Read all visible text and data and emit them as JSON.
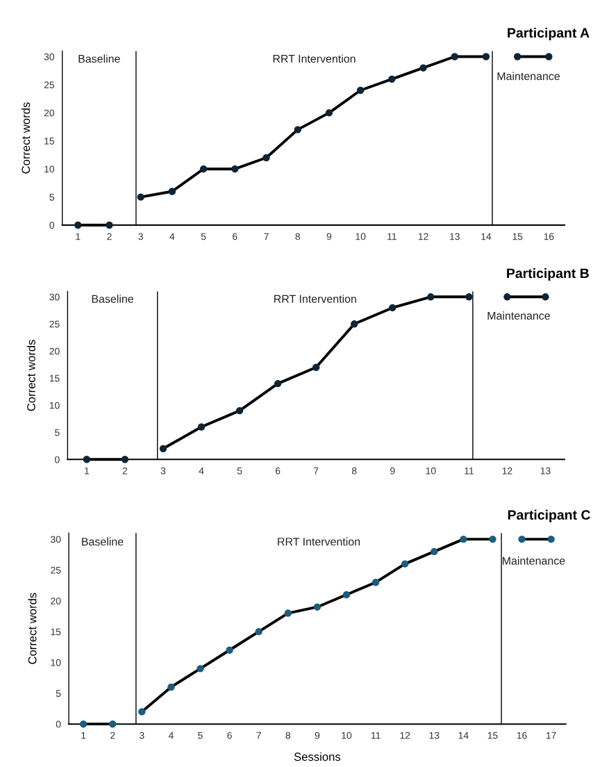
{
  "chart_data": [
    {
      "type": "line",
      "title": "Participant A",
      "ylabel": "Correct words",
      "x": [
        1,
        2,
        3,
        4,
        5,
        6,
        7,
        8,
        9,
        10,
        11,
        12,
        13,
        14,
        15,
        16
      ],
      "xlim": [
        0.5,
        16.5
      ],
      "xticks": [
        1,
        2,
        3,
        4,
        5,
        6,
        7,
        8,
        9,
        10,
        11,
        12,
        13,
        14,
        15,
        16
      ],
      "ylim": [
        0,
        31
      ],
      "yticks": [
        0,
        5,
        10,
        15,
        20,
        25,
        30
      ],
      "marker": "circle",
      "grid": false,
      "legend": false,
      "series": [
        {
          "color": "#0f2535",
          "values": [
            0,
            0,
            null,
            null,
            null,
            null,
            null,
            null,
            null,
            null,
            null,
            null,
            null,
            null,
            null,
            null
          ]
        },
        {
          "color": "#0f2535",
          "values": [
            null,
            null,
            5,
            6,
            10,
            10,
            12,
            17,
            20,
            24,
            26,
            28,
            30,
            30,
            null,
            null
          ]
        },
        {
          "color": "#0f2535",
          "values": [
            null,
            null,
            null,
            null,
            null,
            null,
            null,
            null,
            null,
            null,
            null,
            null,
            null,
            null,
            30,
            30
          ]
        }
      ],
      "ref_lines": [
        {
          "axis": "x",
          "value": 2.85
        },
        {
          "axis": "x",
          "value": 14.2
        }
      ],
      "annotations": [
        "Baseline",
        "RRT Intervention",
        "Maintenance"
      ]
    },
    {
      "type": "line",
      "title": "Participant B",
      "ylabel": "Correct words",
      "x": [
        1,
        2,
        3,
        4,
        5,
        6,
        7,
        8,
        9,
        10,
        11,
        12,
        13
      ],
      "xlim": [
        0.5,
        13.5
      ],
      "xticks": [
        1,
        2,
        3,
        4,
        5,
        6,
        7,
        8,
        9,
        10,
        11,
        12,
        13
      ],
      "ylim": [
        0,
        31
      ],
      "yticks": [
        0,
        5,
        10,
        15,
        20,
        25,
        30
      ],
      "marker": "circle",
      "grid": false,
      "legend": false,
      "series": [
        {
          "color": "#0f2535",
          "values": [
            0,
            0,
            null,
            null,
            null,
            null,
            null,
            null,
            null,
            null,
            null,
            null,
            null
          ]
        },
        {
          "color": "#0f2535",
          "values": [
            null,
            null,
            2,
            6,
            9,
            14,
            17,
            25,
            28,
            30,
            30,
            null,
            null
          ]
        },
        {
          "color": "#0f2535",
          "values": [
            null,
            null,
            null,
            null,
            null,
            null,
            null,
            null,
            null,
            null,
            null,
            30,
            30
          ]
        }
      ],
      "ref_lines": [
        {
          "axis": "x",
          "value": 2.85
        },
        {
          "axis": "x",
          "value": 11.1
        }
      ],
      "annotations": [
        "Baseline",
        "RRT Intervention",
        "Maintenance"
      ]
    },
    {
      "type": "line",
      "title": "Participant C",
      "xlabel": "Sessions",
      "ylabel": "Correct words",
      "x": [
        1,
        2,
        3,
        4,
        5,
        6,
        7,
        8,
        9,
        10,
        11,
        12,
        13,
        14,
        15,
        16,
        17
      ],
      "xlim": [
        0.5,
        17.5
      ],
      "xticks": [
        1,
        2,
        3,
        4,
        5,
        6,
        7,
        8,
        9,
        10,
        11,
        12,
        13,
        14,
        15,
        16,
        17
      ],
      "ylim": [
        0,
        31
      ],
      "yticks": [
        0,
        5,
        10,
        15,
        20,
        25,
        30
      ],
      "marker": "circle",
      "grid": false,
      "legend": false,
      "series": [
        {
          "color": "#1b5e7e",
          "values": [
            0,
            0,
            null,
            null,
            null,
            null,
            null,
            null,
            null,
            null,
            null,
            null,
            null,
            null,
            null,
            null,
            null
          ]
        },
        {
          "color": "#1b5e7e",
          "values": [
            null,
            null,
            2,
            6,
            9,
            12,
            15,
            18,
            19,
            21,
            23,
            26,
            28,
            30,
            30,
            null,
            null
          ]
        },
        {
          "color": "#1b5e7e",
          "values": [
            null,
            null,
            null,
            null,
            null,
            null,
            null,
            null,
            null,
            null,
            null,
            null,
            null,
            null,
            null,
            30,
            30
          ]
        }
      ],
      "ref_lines": [
        {
          "axis": "x",
          "value": 2.8
        },
        {
          "axis": "x",
          "value": 15.3
        }
      ],
      "annotations": [
        "Baseline",
        "RRT Intervention",
        "Maintenance"
      ]
    }
  ]
}
